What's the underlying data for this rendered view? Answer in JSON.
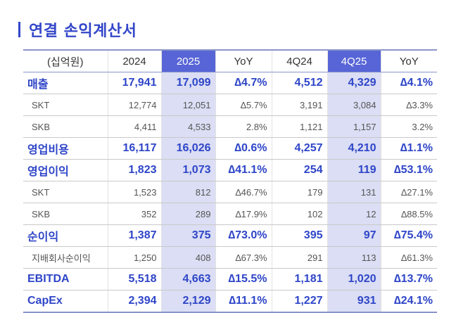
{
  "title": "연결 손익계산서",
  "header": {
    "unit": "(십억원)",
    "cols": [
      "2024",
      "2025",
      "YoY",
      "4Q24",
      "4Q25",
      "YoY"
    ]
  },
  "rows": [
    {
      "label": "매출",
      "type": "major",
      "values": [
        "17,941",
        "17,099",
        "∆4.7%",
        "4,512",
        "4,329",
        "∆4.1%"
      ]
    },
    {
      "label": "SKT",
      "type": "minor",
      "values": [
        "12,774",
        "12,051",
        "∆5.7%",
        "3,191",
        "3,084",
        "∆3.3%"
      ]
    },
    {
      "label": "SKB",
      "type": "minor",
      "values": [
        "4,411",
        "4,533",
        "2.8%",
        "1,121",
        "1,157",
        "3.2%"
      ]
    },
    {
      "label": "영업비용",
      "type": "major",
      "values": [
        "16,117",
        "16,026",
        "∆0.6%",
        "4,257",
        "4,210",
        "∆1.1%"
      ]
    },
    {
      "label": "영업이익",
      "type": "major",
      "values": [
        "1,823",
        "1,073",
        "∆41.1%",
        "254",
        "119",
        "∆53.1%"
      ]
    },
    {
      "label": "SKT",
      "type": "minor",
      "values": [
        "1,523",
        "812",
        "∆46.7%",
        "179",
        "131",
        "∆27.1%"
      ]
    },
    {
      "label": "SKB",
      "type": "minor",
      "values": [
        "352",
        "289",
        "∆17.9%",
        "102",
        "12",
        "∆88.5%"
      ]
    },
    {
      "label": "순이익",
      "type": "major",
      "values": [
        "1,387",
        "375",
        "∆73.0%",
        "395",
        "97",
        "∆75.4%"
      ]
    },
    {
      "label": "지배회사순이익",
      "type": "minor",
      "values": [
        "1,250",
        "408",
        "∆67.3%",
        "291",
        "113",
        "∆61.3%"
      ]
    },
    {
      "label": "EBITDA",
      "type": "major",
      "values": [
        "5,518",
        "4,663",
        "∆15.5%",
        "1,181",
        "1,020",
        "∆13.7%"
      ]
    },
    {
      "label": "CapEx",
      "type": "major",
      "values": [
        "2,394",
        "2,129",
        "∆11.1%",
        "1,227",
        "931",
        "∆24.1%"
      ]
    }
  ]
}
